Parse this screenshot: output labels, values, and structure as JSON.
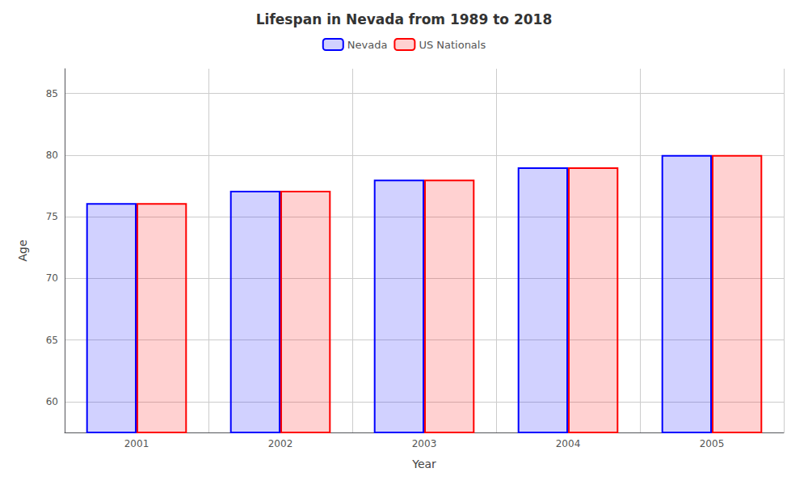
{
  "chart_data": {
    "type": "bar",
    "title": "Lifespan in Nevada from 1989 to 2018",
    "xlabel": "Year",
    "ylabel": "Age",
    "categories": [
      "2001",
      "2002",
      "2003",
      "2004",
      "2005"
    ],
    "series": [
      {
        "name": "Nevada",
        "color": "#0000ff",
        "values": [
          76.1,
          77.1,
          78.0,
          79.0,
          80.0
        ]
      },
      {
        "name": "US Nationals",
        "color": "#ff0000",
        "values": [
          76.1,
          77.1,
          78.0,
          79.0,
          80.0
        ]
      }
    ],
    "ylim": [
      57.5,
      87
    ],
    "yticks": [
      60,
      65,
      70,
      75,
      80,
      85
    ],
    "grid": true,
    "legend": "top"
  }
}
